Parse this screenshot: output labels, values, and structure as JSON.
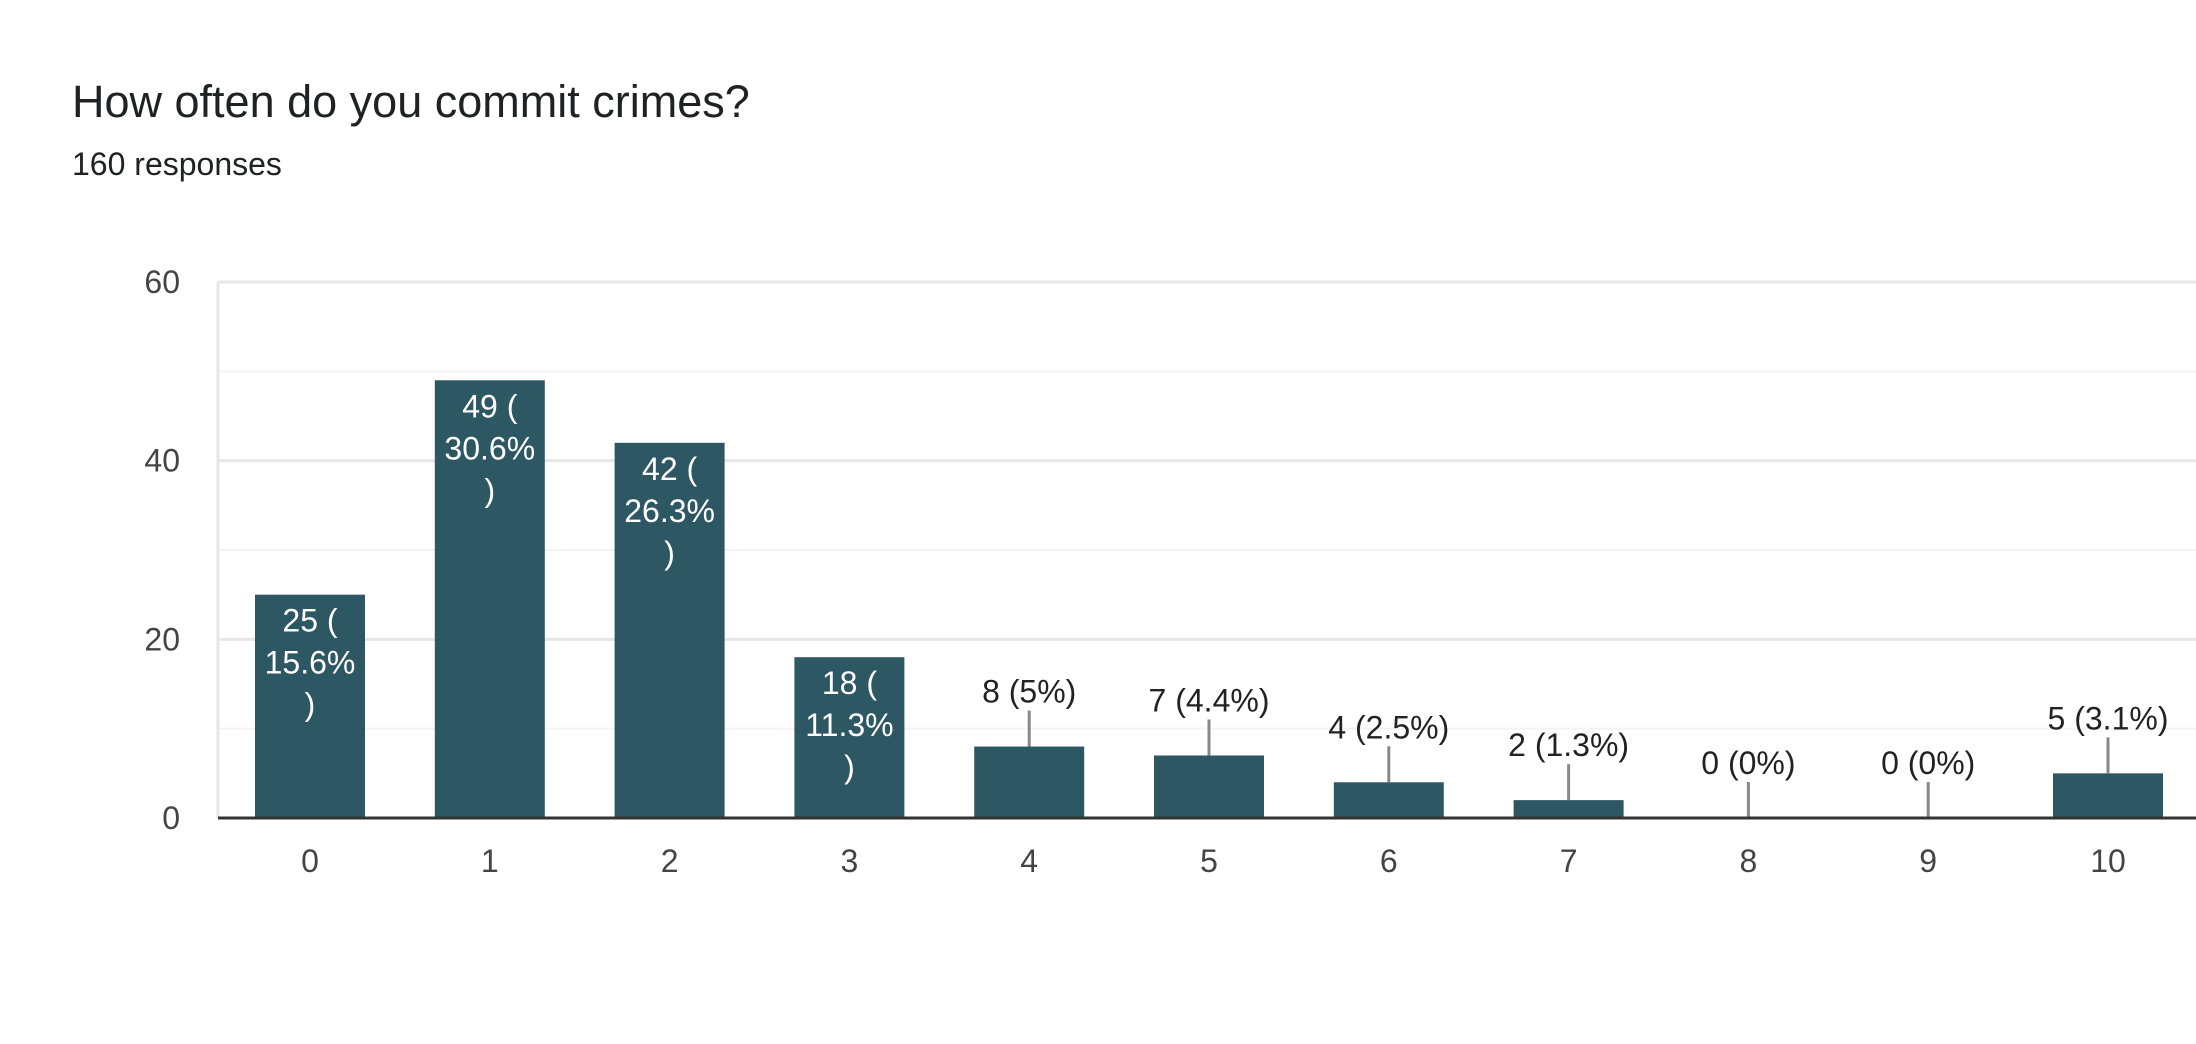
{
  "header": {
    "title": "How often do you commit crimes?",
    "subtitle": "160 responses"
  },
  "colors": {
    "bar": "#2d5763",
    "grid_major": "#e6e6e6",
    "grid_minor": "#f3f3f3",
    "axis": "#333333",
    "leader": "#888888"
  },
  "chart_data": {
    "type": "bar",
    "title": "How often do you commit crimes?",
    "subtitle": "160 responses",
    "xlabel": "",
    "ylabel": "",
    "ylim": [
      0,
      60
    ],
    "yticks": [
      0,
      20,
      40,
      60
    ],
    "grid": true,
    "categories": [
      "0",
      "1",
      "2",
      "3",
      "4",
      "5",
      "6",
      "7",
      "8",
      "9",
      "10"
    ],
    "values": [
      25,
      49,
      42,
      18,
      8,
      7,
      4,
      2,
      0,
      0,
      5
    ],
    "data_labels": [
      "25 (15.6%)",
      "49 (30.6%)",
      "42 (26.3%)",
      "18 (11.3%)",
      "8 (5%)",
      "7 (4.4%)",
      "4 (2.5%)",
      "2 (1.3%)",
      "0 (0%)",
      "0 (0%)",
      "5 (3.1%)"
    ]
  }
}
